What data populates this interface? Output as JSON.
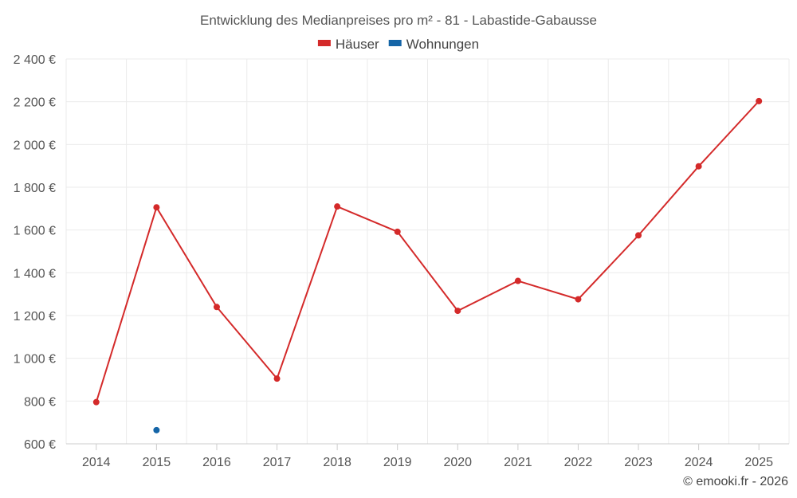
{
  "chart_data": {
    "type": "line",
    "title": "Entwicklung des Medianpreises pro m² - 81 - Labastide-Gabausse",
    "x": [
      "2014",
      "2015",
      "2016",
      "2017",
      "2018",
      "2019",
      "2020",
      "2021",
      "2022",
      "2023",
      "2024",
      "2025"
    ],
    "ylim": [
      600,
      2400
    ],
    "yticks": [
      600,
      800,
      1000,
      1200,
      1400,
      1600,
      1800,
      2000,
      2200,
      2400
    ],
    "ytick_labels": [
      "600 €",
      "800 €",
      "1 000 €",
      "1 200 €",
      "1 400 €",
      "1 600 €",
      "1 800 €",
      "2 000 €",
      "2 200 €",
      "2 400 €"
    ],
    "grid": true,
    "legend_position": "top-center",
    "series": [
      {
        "name": "Häuser",
        "color": "#d42a2a",
        "values": [
          795,
          1706,
          1240,
          905,
          1710,
          1592,
          1222,
          1362,
          1276,
          1575,
          1898,
          2203
        ]
      },
      {
        "name": "Wohnungen",
        "color": "#1565a7",
        "values": [
          null,
          664,
          null,
          null,
          null,
          null,
          null,
          null,
          null,
          null,
          null,
          null
        ]
      }
    ]
  },
  "credit": "© emooki.fr - 2026"
}
